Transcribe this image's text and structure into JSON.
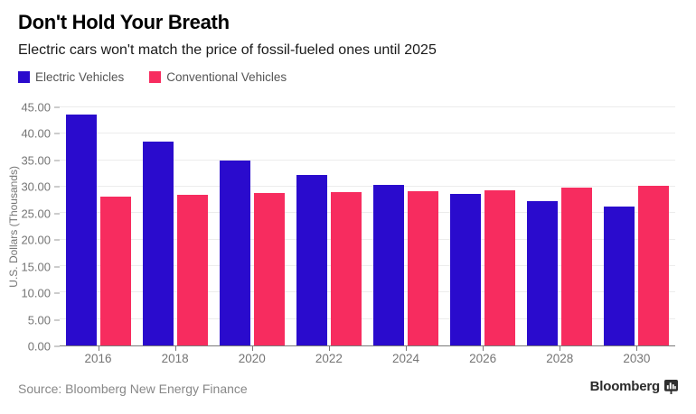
{
  "header": {
    "title": "Don't Hold Your Breath",
    "subtitle": "Electric cars won't match the price of fossil-fueled ones until 2025"
  },
  "legend": [
    {
      "label": "Electric Vehicles",
      "color": "#2A0BCD"
    },
    {
      "label": "Conventional Vehicles",
      "color": "#F72C5F"
    }
  ],
  "chart_data": {
    "type": "bar",
    "categories": [
      "2016",
      "2018",
      "2020",
      "2022",
      "2024",
      "2026",
      "2028",
      "2030"
    ],
    "series": [
      {
        "name": "Electric Vehicles",
        "key": "electric",
        "color": "#2A0BCD",
        "values": [
          43.6,
          38.6,
          35.0,
          32.2,
          30.3,
          28.6,
          27.2,
          26.2
        ]
      },
      {
        "name": "Conventional Vehicles",
        "key": "conventional",
        "color": "#F72C5F",
        "values": [
          28.2,
          28.5,
          28.8,
          29.0,
          29.2,
          29.4,
          29.8,
          30.1
        ]
      }
    ],
    "xlabel": "",
    "ylabel": "U.S. Dollars (Thousands)",
    "ylim": [
      0,
      45
    ],
    "ytick_step": 5,
    "yticks": [
      "45.00",
      "40.00",
      "35.00",
      "30.00",
      "25.00",
      "20.00",
      "15.00",
      "10.00",
      "5.00",
      "0.00"
    ],
    "grid": true,
    "legend_position": "top-left"
  },
  "footer": {
    "source": "Source: Bloomberg New Energy Finance",
    "brand": "Bloomberg",
    "brand_icon": "bar-chart-glyph",
    "brand_icon_color": "#2f2f2f"
  }
}
